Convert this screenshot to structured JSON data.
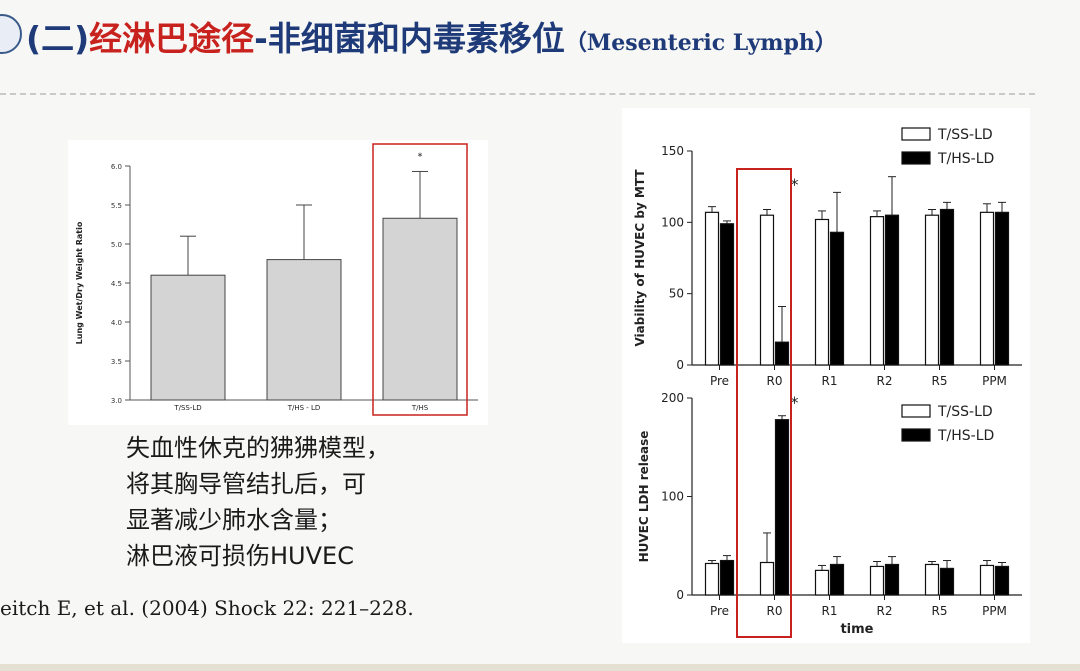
{
  "slide": {
    "title_prefix": "(二)",
    "title_red": "经淋巴途径",
    "title_dash": "-非细菌和内毒素移位",
    "title_english": "（Mesenteric Lymph）",
    "note_lines": [
      "失血性休克的狒狒模型，",
      "将其胸导管结扎后，可",
      "显著减少肺水含量；",
      "淋巴液可损伤HUVEC"
    ],
    "citation": "eitch E, et al. (2004) Shock 22: 221–228.",
    "highlight_color": "#c8221f",
    "title_color": "#1e3a78"
  },
  "chart_data": [
    {
      "type": "bar",
      "ylabel": "Lung Wet/Dry Weight Ratio",
      "xlabel": "",
      "ylim": [
        3.0,
        6.0
      ],
      "yticks": [
        "3.0",
        "3.5",
        "4.0",
        "4.5",
        "5.0",
        "5.5",
        "6.0"
      ],
      "categories": [
        "T/SS-LD",
        "T/HS - LD",
        "T/HS"
      ],
      "values": [
        4.6,
        4.8,
        5.33
      ],
      "errors": [
        0.5,
        0.7,
        0.6
      ],
      "annotation": "*",
      "bar_fill": "#d4d4d4"
    },
    {
      "type": "bar",
      "ylabel": "Viability of HUVEC by MTT",
      "xlabel": "",
      "ylim": [
        0,
        150
      ],
      "yticks": [
        "0",
        "50",
        "100",
        "150"
      ],
      "categories": [
        "Pre",
        "R0",
        "R1",
        "R2",
        "R5",
        "PPM"
      ],
      "series": [
        {
          "name": "T/SS-LD",
          "values": [
            107,
            105,
            102,
            104,
            105,
            107
          ],
          "errors": [
            4,
            4,
            6,
            4,
            4,
            6
          ],
          "color": "#ffffff"
        },
        {
          "name": "T/HS-LD",
          "values": [
            99,
            16,
            93,
            105,
            109,
            107
          ],
          "errors": [
            2,
            25,
            28,
            27,
            5,
            7
          ],
          "color": "#000000"
        }
      ],
      "annotation": "*",
      "legend": "top-right"
    },
    {
      "type": "bar",
      "ylabel": "HUVEC LDH release",
      "xlabel": "time",
      "ylim": [
        0,
        200
      ],
      "yticks": [
        "0",
        "100",
        "200"
      ],
      "categories": [
        "Pre",
        "R0",
        "R1",
        "R2",
        "R5",
        "PPM"
      ],
      "series": [
        {
          "name": "T/SS-LD",
          "values": [
            32,
            33,
            25,
            29,
            31,
            30
          ],
          "errors": [
            3,
            30,
            5,
            5,
            3,
            5
          ],
          "color": "#ffffff"
        },
        {
          "name": "T/HS-LD",
          "values": [
            35,
            178,
            31,
            31,
            27,
            29
          ],
          "errors": [
            5,
            4,
            8,
            8,
            8,
            4
          ],
          "color": "#000000"
        }
      ],
      "annotation": "*",
      "legend": "top-right"
    }
  ]
}
